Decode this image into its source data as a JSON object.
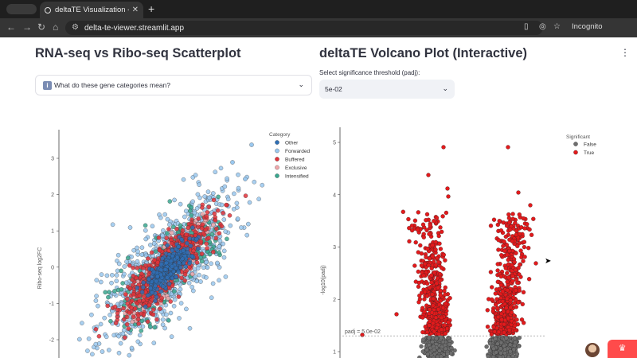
{
  "browser": {
    "tab_title": "deltaTE Visualization - Stream",
    "url": "delta-te-viewer.streamlit.app",
    "mode_label": "Incognito"
  },
  "left": {
    "title": "RNA-seq vs Ribo-seq Scatterplot",
    "expander_icon": "info-icon",
    "expander_label": "What do these gene categories mean?"
  },
  "right": {
    "title": "deltaTE Volcano Plot (Interactive)",
    "select_label": "Select significance threshold (padj):",
    "select_value": "5e-02"
  },
  "chart_data": [
    {
      "type": "scatter",
      "title": "",
      "xlabel": "",
      "ylabel": "Ribo-seq log2FC",
      "y_ticks": [
        "3",
        "2",
        "1",
        "0",
        "-1",
        "-2"
      ],
      "ylim": [
        -2.3,
        3.4
      ],
      "legend_title": "Category",
      "legend_position": "top-right",
      "series": [
        {
          "name": "Other",
          "color": "#2f6fb5",
          "center": [
            0,
            0
          ],
          "spread": [
            0.45,
            0.35
          ]
        },
        {
          "name": "Forwarded",
          "color": "#9ac8ef",
          "center": [
            0,
            0
          ],
          "spread": [
            1.3,
            1.1
          ]
        },
        {
          "name": "Buffered",
          "color": "#e0323a",
          "center": [
            0,
            0
          ],
          "spread": [
            0.9,
            0.6
          ]
        },
        {
          "name": "Exclusive",
          "color": "#f2a8ac",
          "center": [
            0,
            0
          ],
          "spread": [
            0.8,
            0.5
          ]
        },
        {
          "name": "Intensified",
          "color": "#3aa78f",
          "center": [
            0,
            0
          ],
          "spread": [
            1.1,
            0.9
          ]
        }
      ],
      "grid": false
    },
    {
      "type": "scatter",
      "title": "",
      "xlabel": "",
      "ylabel": "-log10(padj)",
      "y_ticks": [
        "5",
        "4",
        "3",
        "2",
        "1"
      ],
      "ylim": [
        0.95,
        5.15
      ],
      "legend_title": "Significant",
      "legend_position": "top-right",
      "series": [
        {
          "name": "False",
          "color": "#6e6e6e"
        },
        {
          "name": "True",
          "color": "#e31a1c"
        }
      ],
      "threshold_line": {
        "y": 1.301,
        "label": "padj = 5.0e-02"
      },
      "grid": false
    }
  ],
  "icons": [
    "info-icon",
    "chevron-down-icon",
    "kebab-menu-icon",
    "streamlit-crown-icon",
    "user-avatar"
  ]
}
